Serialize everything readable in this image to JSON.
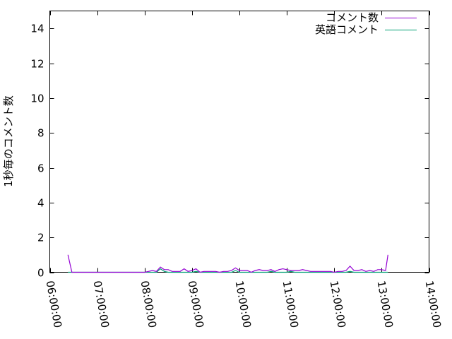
{
  "chart_data": {
    "type": "line",
    "title": "",
    "xlabel": "",
    "ylabel": "1秒毎のコメント数",
    "xlim": [
      "06:00:00",
      "14:00:00"
    ],
    "ylim": [
      0,
      15
    ],
    "x_ticks": [
      "06:00:00",
      "07:00:00",
      "08:00:00",
      "09:00:00",
      "10:00:00",
      "11:00:00",
      "12:00:00",
      "13:00:00",
      "14:00:00"
    ],
    "y_ticks": [
      "0",
      "2",
      "4",
      "6",
      "8",
      "10",
      "12",
      "14"
    ],
    "grid": false,
    "legend_position": "top-right",
    "x": [
      "06:23",
      "06:28",
      "08:00",
      "08:05",
      "08:10",
      "08:15",
      "08:20",
      "08:25",
      "08:30",
      "08:35",
      "08:40",
      "08:45",
      "08:50",
      "08:55",
      "09:00",
      "09:05",
      "09:10",
      "09:15",
      "09:20",
      "09:25",
      "09:30",
      "09:35",
      "09:40",
      "09:45",
      "09:50",
      "09:55",
      "10:00",
      "10:05",
      "10:10",
      "10:15",
      "10:20",
      "10:25",
      "10:30",
      "10:35",
      "10:40",
      "10:45",
      "10:50",
      "10:55",
      "11:00",
      "11:05",
      "11:10",
      "11:15",
      "11:20",
      "11:25",
      "11:30",
      "11:35",
      "11:40",
      "11:45",
      "11:50",
      "11:55",
      "12:00",
      "12:05",
      "12:10",
      "12:15",
      "12:20",
      "12:25",
      "12:30",
      "12:35",
      "12:40",
      "12:45",
      "12:50",
      "12:55",
      "13:00",
      "13:05",
      "13:08"
    ],
    "series": [
      {
        "name": "コメント数",
        "color": "#9400d3",
        "values": [
          1,
          0,
          0,
          0.05,
          0.1,
          0.05,
          0.3,
          0.15,
          0.15,
          0.05,
          0.05,
          0.05,
          0.2,
          0.05,
          0.1,
          0.2,
          0,
          0.05,
          0.05,
          0.05,
          0.05,
          0,
          0.05,
          0.05,
          0.1,
          0.25,
          0.1,
          0.1,
          0.1,
          0,
          0.1,
          0.15,
          0.1,
          0.1,
          0.15,
          0.05,
          0.15,
          0.2,
          0.15,
          0.1,
          0.1,
          0.1,
          0.15,
          0.1,
          0.05,
          0.05,
          0.05,
          0.05,
          0.05,
          0.05,
          0,
          0.05,
          0.05,
          0.1,
          0.35,
          0.1,
          0.1,
          0.15,
          0.05,
          0.1,
          0.05,
          0.15,
          0.15,
          0.1,
          1
        ]
      },
      {
        "name": "英語コメント",
        "color": "#009e73",
        "values": [
          0,
          0,
          0,
          0,
          0,
          0,
          0.2,
          0.05,
          0,
          0,
          0,
          0,
          0,
          0,
          0,
          0.05,
          0,
          0,
          0,
          0,
          0,
          0,
          0,
          0,
          0,
          0.1,
          0,
          0,
          0,
          0,
          0,
          0,
          0,
          0,
          0.05,
          0,
          0,
          0,
          0,
          0.05,
          0,
          0,
          0,
          0,
          0,
          0,
          0,
          0,
          0,
          0,
          0,
          0,
          0,
          0,
          0.05,
          0,
          0,
          0,
          0,
          0,
          0,
          0,
          0,
          0,
          0
        ]
      }
    ]
  }
}
